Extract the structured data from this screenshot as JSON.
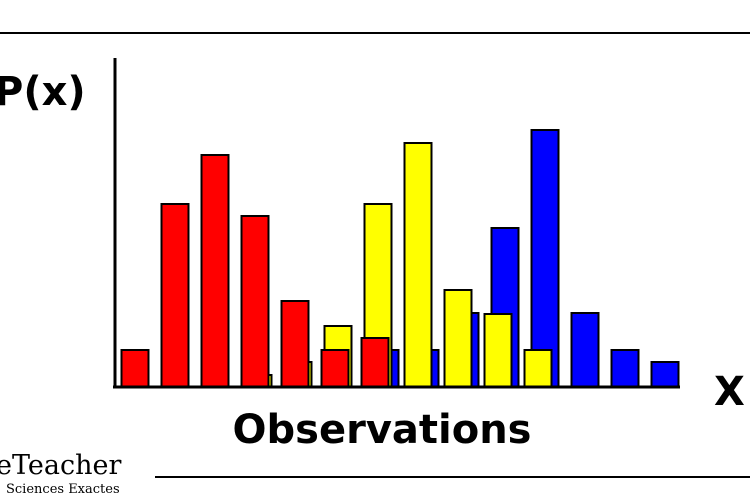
{
  "chart_data": {
    "type": "bar",
    "y_label": "P(x)",
    "x_label": "X",
    "caption": "Observations",
    "categories": [
      null,
      null,
      null,
      null,
      null,
      null,
      null,
      null,
      null,
      null,
      null,
      null,
      null,
      null
    ],
    "series": [
      {
        "color": "#0000ff",
        "values": [
          null,
          null,
          null,
          null,
          null,
          null,
          37,
          37,
          74,
          159,
          257,
          74,
          37,
          25
        ]
      },
      {
        "color": "#ffff00",
        "values": [
          null,
          null,
          null,
          12,
          25,
          61,
          183,
          244,
          97,
          73,
          37,
          null,
          null,
          null
        ]
      },
      {
        "color": "#ff0000",
        "values": [
          37,
          183,
          232,
          171,
          86,
          37,
          49,
          null,
          null,
          null,
          null,
          null,
          null,
          null
        ]
      }
    ],
    "ylim": [
      0,
      327
    ]
  },
  "watermark": {
    "title": "eTeacher",
    "subtitle": "Sciences Exactes"
  }
}
